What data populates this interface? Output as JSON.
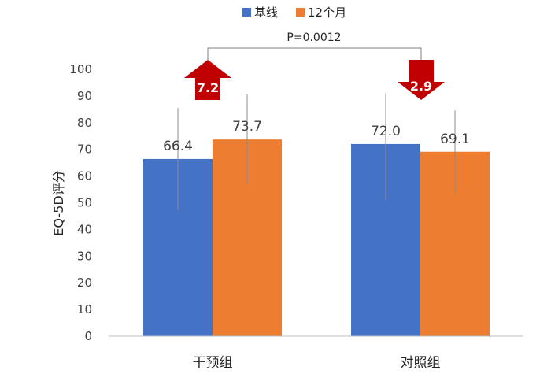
{
  "colors": {
    "baseline": "#4472C4",
    "month12": "#ED7D31",
    "arrow": "#C00000"
  },
  "chart_data": {
    "type": "bar",
    "categories": [
      "干预组",
      "对照组"
    ],
    "series": [
      {
        "name": "基线",
        "values": [
          66.4,
          72.0
        ],
        "labels": [
          "66.4",
          "72.0"
        ],
        "error_low": [
          47.3,
          51.0
        ],
        "error_high": [
          85.5,
          91.0
        ]
      },
      {
        "name": "12个月",
        "values": [
          73.7,
          69.1
        ],
        "labels": [
          "73.7",
          "69.1"
        ],
        "error_low": [
          56.9,
          53.6
        ],
        "error_high": [
          90.5,
          84.6
        ]
      }
    ],
    "xlabel": "",
    "ylabel": "EQ-5D评分",
    "ylim": [
      0,
      100
    ],
    "yticks": [
      "0",
      "10",
      "20",
      "30",
      "40",
      "50",
      "60",
      "70",
      "80",
      "90",
      "100"
    ],
    "legend": "top",
    "annotations": {
      "pvalue": "P=0.0012",
      "change_intervention": {
        "text": "7.2",
        "direction": "up"
      },
      "change_control": {
        "text": "2.9",
        "direction": "down"
      }
    }
  }
}
